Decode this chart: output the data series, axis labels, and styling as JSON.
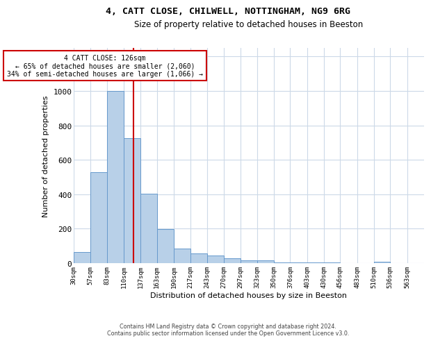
{
  "title": "4, CATT CLOSE, CHILWELL, NOTTINGHAM, NG9 6RG",
  "subtitle": "Size of property relative to detached houses in Beeston",
  "xlabel": "Distribution of detached houses by size in Beeston",
  "ylabel": "Number of detached properties",
  "footer_line1": "Contains HM Land Registry data © Crown copyright and database right 2024.",
  "footer_line2": "Contains public sector information licensed under the Open Government Licence v3.0.",
  "annotation_line1": "4 CATT CLOSE: 126sqm",
  "annotation_line2": "← 65% of detached houses are smaller (2,060)",
  "annotation_line3": "34% of semi-detached houses are larger (1,066) →",
  "property_size": 126,
  "bin_labels": [
    "30sqm",
    "57sqm",
    "83sqm",
    "110sqm",
    "137sqm",
    "163sqm",
    "190sqm",
    "217sqm",
    "243sqm",
    "270sqm",
    "297sqm",
    "323sqm",
    "350sqm",
    "376sqm",
    "403sqm",
    "430sqm",
    "456sqm",
    "483sqm",
    "510sqm",
    "536sqm",
    "563sqm"
  ],
  "bin_edges": [
    30,
    57,
    83,
    110,
    137,
    163,
    190,
    217,
    243,
    270,
    297,
    323,
    350,
    376,
    403,
    430,
    456,
    483,
    510,
    536,
    563,
    590
  ],
  "values": [
    65,
    530,
    1000,
    725,
    405,
    198,
    85,
    55,
    45,
    30,
    17,
    17,
    5,
    5,
    5,
    5,
    0,
    0,
    10,
    0,
    0
  ],
  "bar_color": "#b8d0e8",
  "bar_edge_color": "#6699cc",
  "red_line_color": "#cc0000",
  "annotation_box_color": "#cc0000",
  "background_color": "#ffffff",
  "grid_color": "#ccd9e8",
  "ylim": [
    0,
    1250
  ],
  "yticks": [
    0,
    200,
    400,
    600,
    800,
    1000,
    1200
  ]
}
